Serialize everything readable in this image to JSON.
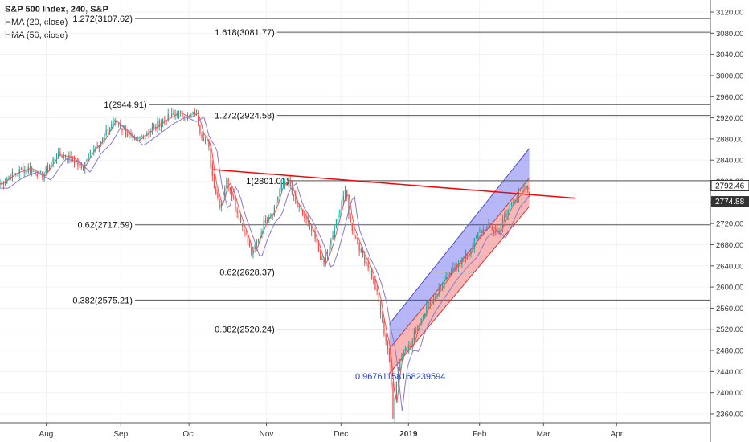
{
  "legend": {
    "title": "S&P 500 Index, 240, S&P",
    "lines": [
      "HMA (20, close)",
      "HMA (50, close)"
    ]
  },
  "colors": {
    "up": "#26a69a",
    "down": "#ef5350",
    "hma20": "#e05a5a",
    "hma50": "#8c78c8",
    "fib": "#555555",
    "trend": "#ff0000",
    "upper_channel": "#7b7bf0",
    "lower_channel": "#f07b7b",
    "pearson": "#2840b0",
    "price_tag": "#333333"
  },
  "chart_data": {
    "type": "candlestick",
    "ylim": [
      2340,
      3140
    ],
    "y_ticks": [
      3120,
      3080,
      3040,
      3000,
      2960,
      2920,
      2880,
      2840,
      2800,
      2760,
      2720,
      2680,
      2640,
      2600,
      2560,
      2520,
      2480,
      2440,
      2400,
      2360
    ],
    "x_ticks": [
      {
        "label": "Aug",
        "x": 0.065
      },
      {
        "label": "Sep",
        "x": 0.17
      },
      {
        "label": "Oct",
        "x": 0.266
      },
      {
        "label": "Nov",
        "x": 0.375
      },
      {
        "label": "Dec",
        "x": 0.48
      },
      {
        "label": "2019",
        "x": 0.575
      },
      {
        "label": "Feb",
        "x": 0.675
      },
      {
        "label": "Mar",
        "x": 0.765
      },
      {
        "label": "Apr",
        "x": 0.868
      }
    ],
    "fib_levels": [
      {
        "label": "1.272(3107.62)",
        "value": 3107.62,
        "x_from": 0.19
      },
      {
        "label": "1.618(3081.77)",
        "value": 3081.77,
        "x_from": 0.39
      },
      {
        "label": "1(2944.91)",
        "value": 2944.91,
        "x_from": 0.21
      },
      {
        "label": "1.272(2924.58)",
        "value": 2924.58,
        "x_from": 0.39
      },
      {
        "label": "1(2801.01)",
        "value": 2801.01,
        "x_from": 0.41
      },
      {
        "label": "0.62(2717.59)",
        "value": 2717.59,
        "x_from": 0.19
      },
      {
        "label": "0.62(2628.37)",
        "value": 2628.37,
        "x_from": 0.39
      },
      {
        "label": "0.382(2575.21)",
        "value": 2575.21,
        "x_from": 0.19
      },
      {
        "label": "0.382(2520.24)",
        "value": 2520.24,
        "x_from": 0.39
      }
    ],
    "trendline": {
      "x1": 0.3,
      "y1": 2822,
      "x2": 0.81,
      "y2": 2768
    },
    "regression_channel": {
      "x1": 0.548,
      "x2": 0.745,
      "upper_start": 2530,
      "upper_end": 2862,
      "mid_start": 2483,
      "mid_end": 2806,
      "lower_start": 2436,
      "lower_end": 2752
    },
    "pearson_label": "0.96761158168239594",
    "price_labels": [
      {
        "value": 2792.46,
        "label": "2792.46"
      },
      {
        "value": 2774.88,
        "label": "2774.88"
      }
    ],
    "keypoints": [
      {
        "x": 0.0,
        "y": 2795
      },
      {
        "x": 0.02,
        "y": 2815
      },
      {
        "x": 0.04,
        "y": 2825
      },
      {
        "x": 0.06,
        "y": 2810
      },
      {
        "x": 0.08,
        "y": 2850
      },
      {
        "x": 0.1,
        "y": 2845
      },
      {
        "x": 0.115,
        "y": 2825
      },
      {
        "x": 0.13,
        "y": 2860
      },
      {
        "x": 0.145,
        "y": 2880
      },
      {
        "x": 0.16,
        "y": 2915
      },
      {
        "x": 0.175,
        "y": 2895
      },
      {
        "x": 0.19,
        "y": 2875
      },
      {
        "x": 0.21,
        "y": 2895
      },
      {
        "x": 0.23,
        "y": 2915
      },
      {
        "x": 0.25,
        "y": 2930
      },
      {
        "x": 0.265,
        "y": 2920
      },
      {
        "x": 0.275,
        "y": 2930
      },
      {
        "x": 0.283,
        "y": 2890
      },
      {
        "x": 0.293,
        "y": 2870
      },
      {
        "x": 0.3,
        "y": 2800
      },
      {
        "x": 0.31,
        "y": 2750
      },
      {
        "x": 0.318,
        "y": 2800
      },
      {
        "x": 0.325,
        "y": 2785
      },
      {
        "x": 0.333,
        "y": 2745
      },
      {
        "x": 0.345,
        "y": 2700
      },
      {
        "x": 0.355,
        "y": 2660
      },
      {
        "x": 0.365,
        "y": 2700
      },
      {
        "x": 0.375,
        "y": 2730
      },
      {
        "x": 0.385,
        "y": 2745
      },
      {
        "x": 0.395,
        "y": 2790
      },
      {
        "x": 0.405,
        "y": 2805
      },
      {
        "x": 0.415,
        "y": 2760
      },
      {
        "x": 0.425,
        "y": 2740
      },
      {
        "x": 0.435,
        "y": 2715
      },
      {
        "x": 0.445,
        "y": 2685
      },
      {
        "x": 0.455,
        "y": 2640
      },
      {
        "x": 0.465,
        "y": 2680
      },
      {
        "x": 0.473,
        "y": 2720
      },
      {
        "x": 0.482,
        "y": 2770
      },
      {
        "x": 0.487,
        "y": 2780
      },
      {
        "x": 0.493,
        "y": 2720
      },
      {
        "x": 0.5,
        "y": 2695
      },
      {
        "x": 0.51,
        "y": 2660
      },
      {
        "x": 0.518,
        "y": 2640
      },
      {
        "x": 0.526,
        "y": 2610
      },
      {
        "x": 0.532,
        "y": 2580
      },
      {
        "x": 0.538,
        "y": 2530
      },
      {
        "x": 0.545,
        "y": 2490
      },
      {
        "x": 0.55,
        "y": 2430
      },
      {
        "x": 0.553,
        "y": 2355
      },
      {
        "x": 0.556,
        "y": 2400
      },
      {
        "x": 0.562,
        "y": 2460
      },
      {
        "x": 0.57,
        "y": 2490
      },
      {
        "x": 0.578,
        "y": 2485
      },
      {
        "x": 0.585,
        "y": 2520
      },
      {
        "x": 0.6,
        "y": 2560
      },
      {
        "x": 0.615,
        "y": 2590
      },
      {
        "x": 0.63,
        "y": 2620
      },
      {
        "x": 0.645,
        "y": 2645
      },
      {
        "x": 0.66,
        "y": 2665
      },
      {
        "x": 0.675,
        "y": 2705
      },
      {
        "x": 0.69,
        "y": 2715
      },
      {
        "x": 0.7,
        "y": 2700
      },
      {
        "x": 0.71,
        "y": 2730
      },
      {
        "x": 0.72,
        "y": 2760
      },
      {
        "x": 0.73,
        "y": 2775
      },
      {
        "x": 0.738,
        "y": 2790
      },
      {
        "x": 0.745,
        "y": 2780
      }
    ]
  }
}
